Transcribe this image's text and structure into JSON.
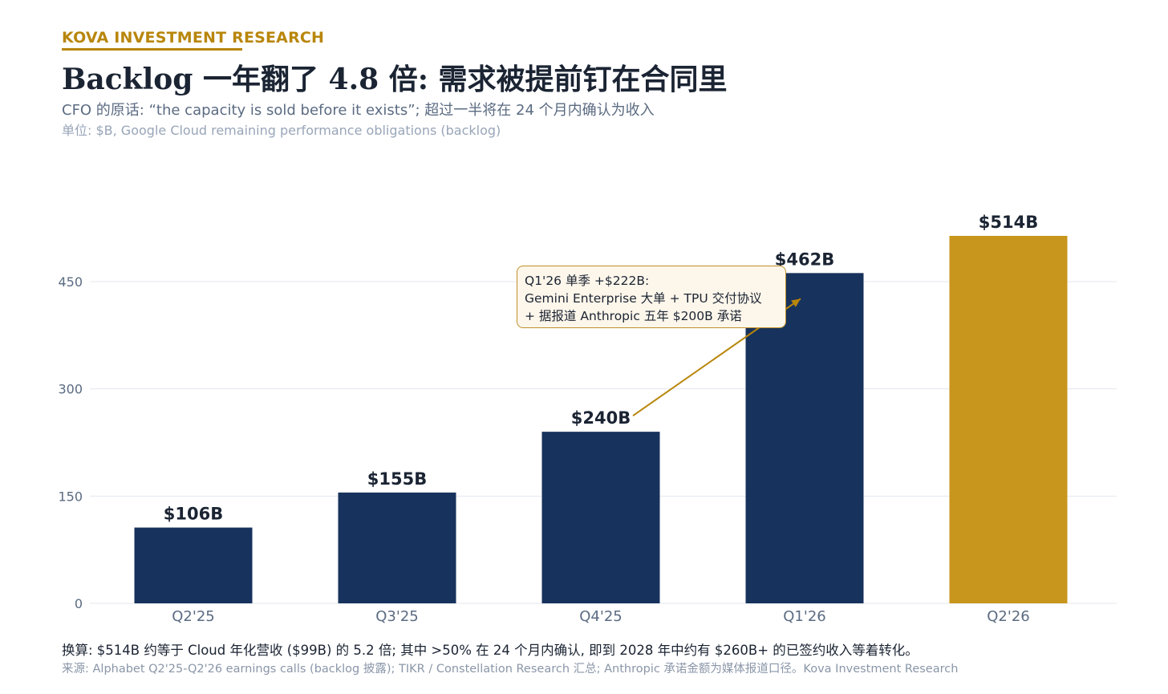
{
  "header": {
    "brand": "KOVA INVESTMENT RESEARCH",
    "title": "Backlog 一年翻了 4.8 倍: 需求被提前钉在合同里",
    "subtitle": "CFO 的原话: “the capacity is sold before it exists”; 超过一半将在 24 个月内确认为收入",
    "unit": "单位: $B, Google Cloud remaining performance obligations (backlog)"
  },
  "chart_data": {
    "type": "bar",
    "categories": [
      "Q2'25",
      "Q3'25",
      "Q4'25",
      "Q1'26",
      "Q2'26"
    ],
    "values": [
      106,
      155,
      240,
      462,
      514
    ],
    "data_labels": [
      "$106B",
      "$155B",
      "$240B",
      "$462B",
      "$514B"
    ],
    "yticks": [
      0,
      150,
      300,
      450
    ],
    "ylim": [
      0,
      514
    ],
    "grid": true,
    "colors": {
      "default": "#17325c",
      "highlight": "#c8961c",
      "grid": "#e3e7ee",
      "axis_text": "#5b6b82",
      "annotation": "#b8860b"
    },
    "highlight_index": 4,
    "annotation": {
      "lines": [
        "Q1'26 单季 +$222B:",
        "Gemini Enterprise 大单 + TPU 交付协议",
        "+ 据报道 Anthropic 五年 $200B 承诺"
      ],
      "from_category": "Q4'25",
      "to_category": "Q1'26"
    }
  },
  "footer": {
    "note": "换算: $514B 约等于 Cloud 年化营收 ($99B) 的 5.2 倍; 其中 >50% 在 24 个月内确认, 即到 2028 年中约有 $260B+ 的已签约收入等着转化。",
    "source": "来源: Alphabet Q2'25-Q2'26 earnings calls (backlog 披露); TIKR / Constellation Research 汇总; Anthropic 承诺金额为媒体报道口径。Kova Investment Research"
  }
}
